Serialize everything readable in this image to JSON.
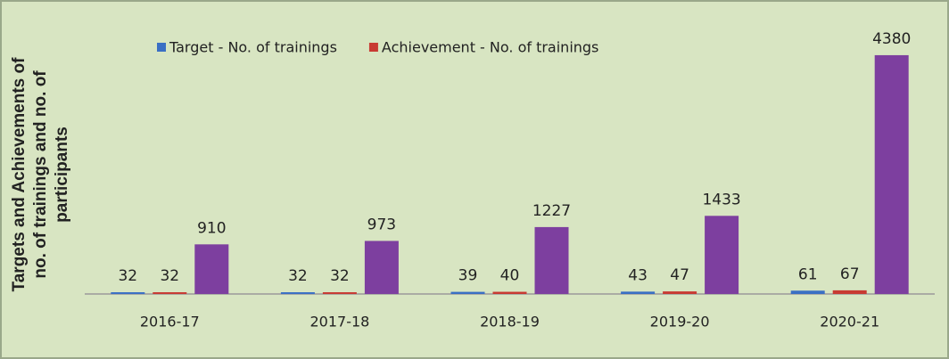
{
  "chart_data": {
    "type": "bar",
    "ylabel": [
      "Targets and Achievements of",
      "no. of trainings and no. of",
      "participants"
    ],
    "categories": [
      "2016-17",
      "2017-18",
      "2018-19",
      "2019-20",
      "2020-21"
    ],
    "series": [
      {
        "name": "Target - No. of trainings",
        "color": "#3a6fc4",
        "values": [
          32,
          32,
          39,
          43,
          61
        ]
      },
      {
        "name": "Achievement - No. of trainings",
        "color": "#c83a32",
        "values": [
          32,
          32,
          40,
          47,
          67
        ]
      },
      {
        "color": "#7d3f9f",
        "values": [
          910,
          973,
          1227,
          1433,
          4380
        ]
      }
    ],
    "ylim": [
      0,
      5000
    ],
    "grid": false,
    "legend": "top"
  }
}
